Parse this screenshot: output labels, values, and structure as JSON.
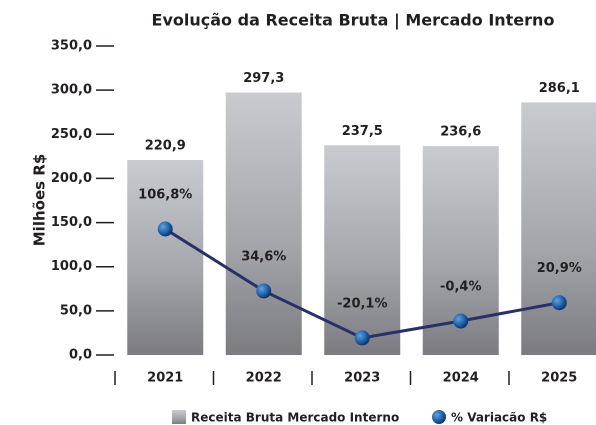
{
  "chart_data": {
    "type": "bar",
    "title": "Evolução da Receita Bruta | Mercado Interno",
    "y_label": "Milhões R$",
    "categories": [
      "2021",
      "2022",
      "2023",
      "2024",
      "2025"
    ],
    "series": [
      {
        "name": "Receita Bruta Mercado Interno",
        "type": "bar",
        "color": "#a9acb2",
        "values": [
          220.9,
          297.3,
          237.5,
          236.6,
          286.1
        ],
        "value_labels": [
          "220,9",
          "297,3",
          "237,5",
          "236,6",
          "286,1"
        ]
      },
      {
        "name": "% Variacão R$",
        "type": "line",
        "axis": "y2",
        "color": "#28306a",
        "marker_color": "#1f5fa8",
        "values": [
          106.8,
          34.6,
          -20.1,
          -0.4,
          20.9
        ],
        "value_labels": [
          "106,8%",
          "34,6%",
          "-20,1%",
          "-0,4%",
          "20,9%"
        ]
      }
    ],
    "ylim": [
      0,
      350
    ],
    "yticks": [
      {
        "value": 0,
        "label": "0,0"
      },
      {
        "value": 50,
        "label": "50,0"
      },
      {
        "value": 100,
        "label": "100,0"
      },
      {
        "value": 150,
        "label": "150,0"
      },
      {
        "value": 200,
        "label": "200,0"
      },
      {
        "value": 250,
        "label": "250,0"
      },
      {
        "value": 300,
        "label": "300,0"
      },
      {
        "value": 350,
        "label": "350,0"
      }
    ],
    "y2lim": [
      -40,
      320
    ],
    "legend": "bottom"
  }
}
